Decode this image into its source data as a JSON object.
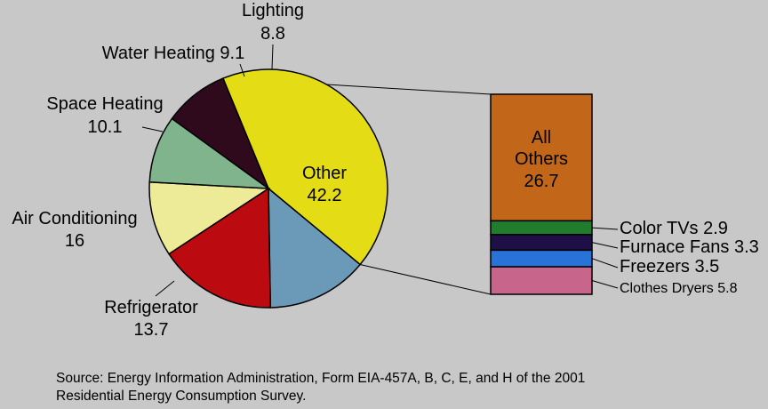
{
  "chart_data": {
    "type": "pie",
    "pie": {
      "slices": [
        {
          "label": "Other",
          "value": 42.2,
          "value_text": "42.2",
          "color": "#e4dc14"
        },
        {
          "label": "Refrigerator",
          "value": 13.7,
          "value_text": "13.7",
          "color": "#6b99b8"
        },
        {
          "label": "Air Conditioning",
          "value": 16,
          "value_text": "16",
          "color": "#bb0a10"
        },
        {
          "label": "Space Heating",
          "value": 10.1,
          "value_text": "10.1",
          "color": "#eeeb98"
        },
        {
          "label": "Water Heating",
          "value": 9.1,
          "value_text": "9.1",
          "color": "#7fb48c"
        },
        {
          "label": "Lighting",
          "value": 8.8,
          "value_text": "8.8",
          "color": "#2e0a1c"
        }
      ]
    },
    "breakdown": {
      "of": "Other",
      "segments": [
        {
          "label": "All Others",
          "value": 26.7,
          "value_text": "26.7",
          "color": "#c2661a"
        },
        {
          "label": "Color TVs",
          "value": 2.9,
          "value_text": "2.9",
          "color": "#1f7d2d"
        },
        {
          "label": "Furnace Fans",
          "value": 3.3,
          "value_text": "3.3",
          "color": "#1e0f47"
        },
        {
          "label": "Freezers",
          "value": 3.5,
          "value_text": "3.5",
          "color": "#2873d8"
        },
        {
          "label": "Clothes Dryers",
          "value": 5.8,
          "value_text": "5.8",
          "color": "#c7668a"
        }
      ]
    }
  },
  "source_line1": "Source: Energy Information Administration, Form EIA-457A, B, C, E, and H of the 2001",
  "source_line2": "Residential Energy Consumption Survey."
}
